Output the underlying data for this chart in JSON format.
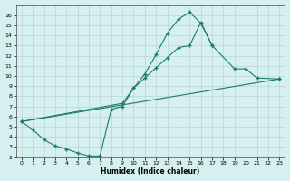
{
  "xlabel": "Humidex (Indice chaleur)",
  "bg_color": "#d6f0f0",
  "line_color": "#1a7a6e",
  "grid_color": "#b8d4d4",
  "xlim": [
    -0.5,
    23.5
  ],
  "ylim": [
    2,
    17
  ],
  "xticks": [
    0,
    1,
    2,
    3,
    4,
    5,
    6,
    7,
    8,
    9,
    10,
    11,
    12,
    13,
    14,
    15,
    16,
    17,
    18,
    19,
    20,
    21,
    22,
    23
  ],
  "yticks": [
    2,
    3,
    4,
    5,
    6,
    7,
    8,
    9,
    10,
    11,
    12,
    13,
    14,
    15,
    16
  ],
  "line1_x": [
    0,
    1,
    2,
    3,
    4,
    5,
    6,
    7,
    8,
    9,
    10,
    11,
    12,
    13,
    14,
    15,
    16,
    17
  ],
  "line1_y": [
    5.5,
    4.7,
    3.7,
    3.1,
    2.8,
    2.4,
    2.1,
    2.1,
    6.7,
    7.0,
    8.8,
    10.2,
    12.1,
    14.2,
    15.6,
    16.3,
    15.2,
    13.0
  ],
  "line2_x": [
    0,
    9,
    10,
    11,
    12,
    13,
    14,
    15,
    16,
    17,
    19,
    20,
    21,
    23
  ],
  "line2_y": [
    5.5,
    7.3,
    8.8,
    9.8,
    10.8,
    11.8,
    12.8,
    13.0,
    15.3,
    13.0,
    10.7,
    10.7,
    9.8,
    9.7
  ],
  "line3_x": [
    0,
    23
  ],
  "line3_y": [
    5.5,
    9.7
  ]
}
